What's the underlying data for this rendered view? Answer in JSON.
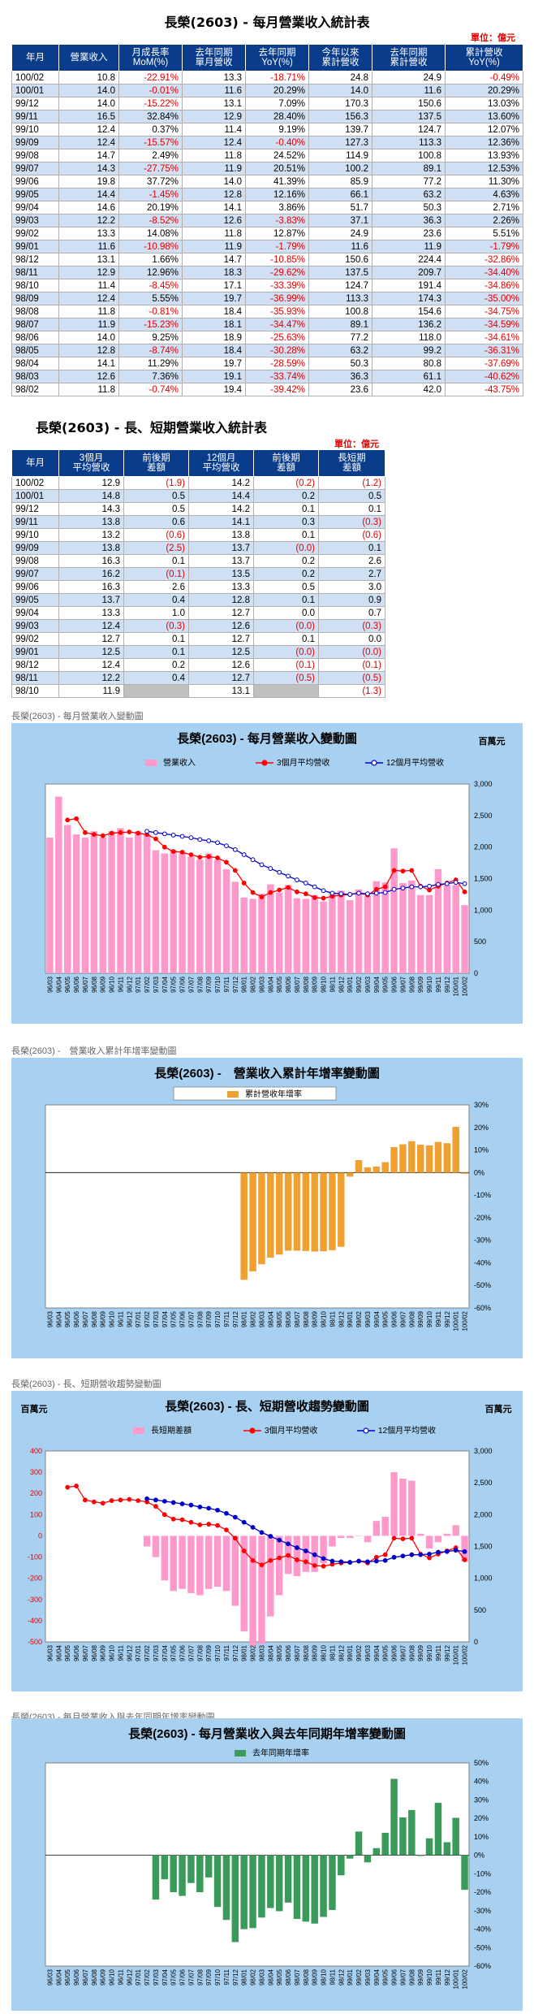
{
  "t1": {
    "title": "長榮(2603) - 每月營業收入統計表",
    "unit": "單位：億元",
    "headers": [
      "年月",
      "營業收入",
      "月成長率\nMoM(%)",
      "去年同期\n單月營收",
      "去年同期\nYoY(%)",
      "今年以來\n累計營收",
      "去年同期\n累計營收",
      "累計營收\nYoY(%)"
    ],
    "rows": [
      [
        "100/02",
        "10.8",
        "-22.91%",
        "13.3",
        "-18.71%",
        "24.8",
        "24.9",
        "-0.49%"
      ],
      [
        "100/01",
        "14.0",
        "-0.01%",
        "11.6",
        "20.29%",
        "14.0",
        "11.6",
        "20.29%"
      ],
      [
        "99/12",
        "14.0",
        "-15.22%",
        "13.1",
        "7.09%",
        "170.3",
        "150.6",
        "13.03%"
      ],
      [
        "99/11",
        "16.5",
        "32.84%",
        "12.9",
        "28.40%",
        "156.3",
        "137.5",
        "13.60%"
      ],
      [
        "99/10",
        "12.4",
        "0.37%",
        "11.4",
        "9.19%",
        "139.7",
        "124.7",
        "12.07%"
      ],
      [
        "99/09",
        "12.4",
        "-15.57%",
        "12.4",
        "-0.40%",
        "127.3",
        "113.3",
        "12.36%"
      ],
      [
        "99/08",
        "14.7",
        "2.49%",
        "11.8",
        "24.52%",
        "114.9",
        "100.8",
        "13.93%"
      ],
      [
        "99/07",
        "14.3",
        "-27.75%",
        "11.9",
        "20.51%",
        "100.2",
        "89.1",
        "12.53%"
      ],
      [
        "99/06",
        "19.8",
        "37.72%",
        "14.0",
        "41.39%",
        "85.9",
        "77.2",
        "11.30%"
      ],
      [
        "99/05",
        "14.4",
        "-1.45%",
        "12.8",
        "12.16%",
        "66.1",
        "63.2",
        "4.63%"
      ],
      [
        "99/04",
        "14.6",
        "20.19%",
        "14.1",
        "3.86%",
        "51.7",
        "50.3",
        "2.71%"
      ],
      [
        "99/03",
        "12.2",
        "-8.52%",
        "12.6",
        "-3.83%",
        "37.1",
        "36.3",
        "2.26%"
      ],
      [
        "99/02",
        "13.3",
        "14.08%",
        "11.8",
        "12.87%",
        "24.9",
        "23.6",
        "5.51%"
      ],
      [
        "99/01",
        "11.6",
        "-10.98%",
        "11.9",
        "-1.79%",
        "11.6",
        "11.9",
        "-1.79%"
      ],
      [
        "98/12",
        "13.1",
        "1.66%",
        "14.7",
        "-10.85%",
        "150.6",
        "224.4",
        "-32.86%"
      ],
      [
        "98/11",
        "12.9",
        "12.96%",
        "18.3",
        "-29.62%",
        "137.5",
        "209.7",
        "-34.40%"
      ],
      [
        "98/10",
        "11.4",
        "-8.45%",
        "17.1",
        "-33.39%",
        "124.7",
        "191.4",
        "-34.86%"
      ],
      [
        "98/09",
        "12.4",
        "5.55%",
        "19.7",
        "-36.99%",
        "113.3",
        "174.3",
        "-35.00%"
      ],
      [
        "98/08",
        "11.8",
        "-0.81%",
        "18.4",
        "-35.93%",
        "100.8",
        "154.6",
        "-34.75%"
      ],
      [
        "98/07",
        "11.9",
        "-15.23%",
        "18.1",
        "-34.47%",
        "89.1",
        "136.2",
        "-34.59%"
      ],
      [
        "98/06",
        "14.0",
        "9.25%",
        "18.9",
        "-25.63%",
        "77.2",
        "118.0",
        "-34.61%"
      ],
      [
        "98/05",
        "12.8",
        "-8.74%",
        "18.4",
        "-30.28%",
        "63.2",
        "99.2",
        "-36.31%"
      ],
      [
        "98/04",
        "14.1",
        "11.29%",
        "19.7",
        "-28.59%",
        "50.3",
        "80.8",
        "-37.69%"
      ],
      [
        "98/03",
        "12.6",
        "7.36%",
        "19.1",
        "-33.74%",
        "36.3",
        "61.1",
        "-40.62%"
      ],
      [
        "98/02",
        "11.8",
        "-0.74%",
        "19.4",
        "-39.42%",
        "23.6",
        "42.0",
        "-43.75%"
      ]
    ]
  },
  "t2": {
    "title": "長榮(2603) - 長、短期營業收入統計表",
    "unit": "單位：億元",
    "headers": [
      "年月",
      "3個月\n平均營收",
      "前後期\n差額",
      "12個月\n平均營收",
      "前後期\n差額",
      "長短期\n差額"
    ],
    "rows": [
      [
        "100/02",
        "12.9",
        "(1.9)",
        "14.2",
        "(0.2)",
        "(1.2)"
      ],
      [
        "100/01",
        "14.8",
        "0.5",
        "14.4",
        "0.2",
        "0.5"
      ],
      [
        "99/12",
        "14.3",
        "0.5",
        "14.2",
        "0.1",
        "0.1"
      ],
      [
        "99/11",
        "13.8",
        "0.6",
        "14.1",
        "0.3",
        "(0.3)"
      ],
      [
        "99/10",
        "13.2",
        "(0.6)",
        "13.8",
        "0.1",
        "(0.6)"
      ],
      [
        "99/09",
        "13.8",
        "(2.5)",
        "13.7",
        "(0.0)",
        "0.1"
      ],
      [
        "99/08",
        "16.3",
        "0.1",
        "13.7",
        "0.2",
        "2.6"
      ],
      [
        "99/07",
        "16.2",
        "(0.1)",
        "13.5",
        "0.2",
        "2.7"
      ],
      [
        "99/06",
        "16.3",
        "2.6",
        "13.3",
        "0.5",
        "3.0"
      ],
      [
        "99/05",
        "13.7",
        "0.4",
        "12.8",
        "0.1",
        "0.9"
      ],
      [
        "99/04",
        "13.3",
        "1.0",
        "12.7",
        "0.0",
        "0.7"
      ],
      [
        "99/03",
        "12.4",
        "(0.3)",
        "12.6",
        "(0.0)",
        "(0.3)"
      ],
      [
        "99/02",
        "12.7",
        "0.1",
        "12.7",
        "0.1",
        "0.0"
      ],
      [
        "99/01",
        "12.5",
        "0.1",
        "12.5",
        "(0.0)",
        "(0.0)"
      ],
      [
        "98/12",
        "12.4",
        "0.2",
        "12.6",
        "(0.1)",
        "(0.1)"
      ],
      [
        "98/11",
        "12.2",
        "0.4",
        "12.7",
        "(0.5)",
        "(0.5)"
      ],
      [
        "98/10",
        "11.9",
        "",
        "13.1",
        "",
        "(1.3)"
      ]
    ]
  },
  "captions": {
    "c1": "長榮(2603) - 每月營業收入變動圖",
    "c2": "長榮(2603) -　營業收入累計年增率變動圖",
    "c3": "長榮(2603) - 長、短期營收趨勢變動圖",
    "c4": "長榮(2603) - 每月營業收入與去年同期年增率變動圖"
  },
  "xlabels": [
    "96/03",
    "96/04",
    "96/05",
    "96/06",
    "96/07",
    "96/08",
    "96/09",
    "96/10",
    "96/11",
    "96/12",
    "97/01",
    "97/02",
    "97/03",
    "97/04",
    "97/05",
    "97/06",
    "97/07",
    "97/08",
    "97/09",
    "97/10",
    "97/11",
    "97/12",
    "98/01",
    "98/02",
    "98/03",
    "98/04",
    "98/05",
    "98/06",
    "98/07",
    "98/08",
    "98/09",
    "98/10",
    "98/11",
    "98/12",
    "99/01",
    "99/02",
    "99/03",
    "99/04",
    "99/05",
    "99/06",
    "99/07",
    "99/08",
    "99/09",
    "99/10",
    "99/11",
    "99/12",
    "100/01",
    "100/02"
  ],
  "colors": {
    "chart_bg": "#a8d0f0",
    "pink": "#ff99cc",
    "red": "#ff0000",
    "blue": "#0000cc",
    "orange": "#f0a030",
    "green": "#3a9a5a",
    "table_header": "#0a3c8c",
    "table_alt": "#cfe0f5",
    "neg": "#e00000"
  },
  "chart_data": [
    {
      "type": "bar",
      "title": "長榮(2603) - 每月營業收入變動圖",
      "unit_label": "百萬元",
      "ylim": [
        0,
        3000
      ],
      "yticks": [
        "0",
        "500",
        "1,000",
        "1,500",
        "2,000",
        "2,500",
        "3,000"
      ],
      "series": [
        {
          "name": "營業收入",
          "kind": "bar",
          "values": [
            2150,
            2800,
            2350,
            2200,
            2150,
            2250,
            2150,
            2250,
            2300,
            2150,
            2250,
            2200,
            1950,
            1900,
            1950,
            1900,
            1850,
            1800,
            1900,
            1800,
            1650,
            1450,
            1200,
            1180,
            1260,
            1410,
            1280,
            1400,
            1190,
            1180,
            1240,
            1140,
            1290,
            1310,
            1160,
            1330,
            1220,
            1460,
            1440,
            1980,
            1430,
            1470,
            1240,
            1240,
            1650,
            1400,
            1400,
            1080
          ]
        },
        {
          "name": "3個月平均營收",
          "kind": "line",
          "values": [
            null,
            null,
            2430,
            2450,
            2230,
            2200,
            2180,
            2220,
            2230,
            2240,
            2220,
            2200,
            2130,
            2000,
            1930,
            1920,
            1880,
            1840,
            1850,
            1830,
            1760,
            1630,
            1430,
            1280,
            1210,
            1280,
            1320,
            1360,
            1290,
            1260,
            1200,
            1190,
            1220,
            1240,
            1250,
            1270,
            1240,
            1330,
            1370,
            1630,
            1620,
            1630,
            1380,
            1320,
            1380,
            1430,
            1480,
            1290
          ]
        },
        {
          "name": "12個月平均營收",
          "kind": "line",
          "values": [
            null,
            null,
            null,
            null,
            null,
            null,
            null,
            null,
            null,
            null,
            null,
            2250,
            2230,
            2210,
            2190,
            2170,
            2150,
            2120,
            2100,
            2070,
            2020,
            1960,
            1880,
            1800,
            1720,
            1660,
            1600,
            1540,
            1480,
            1430,
            1370,
            1310,
            1270,
            1260,
            1250,
            1270,
            1260,
            1270,
            1280,
            1330,
            1350,
            1370,
            1370,
            1380,
            1410,
            1420,
            1440,
            1420
          ]
        }
      ]
    },
    {
      "type": "bar",
      "title": "長榮(2603) -　營業收入累計年增率變動圖",
      "ylim": [
        -60,
        30
      ],
      "yticks": [
        "30%",
        "20%",
        "10%",
        "0%",
        "-10%",
        "-20%",
        "-30%",
        "-40%",
        "-50%",
        "-60%"
      ],
      "series": [
        {
          "name": "累計營收年增率",
          "values": [
            null,
            null,
            null,
            null,
            null,
            null,
            null,
            null,
            null,
            null,
            null,
            null,
            null,
            null,
            null,
            null,
            null,
            null,
            null,
            null,
            null,
            null,
            -47.5,
            -43.75,
            -40.62,
            -37.69,
            -36.31,
            -34.61,
            -34.59,
            -34.75,
            -35.0,
            -34.86,
            -34.4,
            -32.86,
            -1.79,
            5.51,
            2.26,
            2.71,
            4.63,
            11.3,
            12.53,
            13.93,
            12.36,
            12.07,
            13.6,
            13.03,
            20.29,
            -0.49
          ]
        }
      ]
    },
    {
      "type": "bar",
      "title": "長榮(2603) - 長、短期營收趨勢變動圖",
      "unit_label": "百萬元",
      "ylim_left": [
        -500,
        400
      ],
      "yticks_left": [
        "400",
        "300",
        "200",
        "100",
        "0",
        "-100",
        "-200",
        "-300",
        "-400",
        "-500"
      ],
      "ylim_right": [
        0,
        3000
      ],
      "yticks_right": [
        "3,000",
        "2,500",
        "2,000",
        "1,500",
        "1,000",
        "500",
        "0"
      ],
      "series": [
        {
          "name": "長短期差額",
          "kind": "bar",
          "axis": "left",
          "values": [
            null,
            null,
            null,
            null,
            null,
            null,
            null,
            null,
            null,
            null,
            null,
            -50,
            -100,
            -210,
            -260,
            -250,
            -270,
            -280,
            -250,
            -240,
            -260,
            -330,
            -450,
            -520,
            -510,
            -380,
            -280,
            -180,
            -190,
            -170,
            -170,
            -130,
            -50,
            -10,
            -10,
            0,
            -30,
            70,
            90,
            300,
            270,
            260,
            10,
            -60,
            -30,
            10,
            50,
            -120
          ]
        },
        {
          "name": "3個月平均營收",
          "kind": "line",
          "axis": "right",
          "values": [
            null,
            null,
            2430,
            2450,
            2230,
            2200,
            2180,
            2220,
            2230,
            2240,
            2220,
            2200,
            2130,
            2000,
            1930,
            1920,
            1880,
            1840,
            1850,
            1830,
            1760,
            1630,
            1430,
            1280,
            1210,
            1280,
            1320,
            1360,
            1290,
            1260,
            1200,
            1190,
            1220,
            1240,
            1250,
            1270,
            1240,
            1330,
            1370,
            1630,
            1620,
            1630,
            1380,
            1320,
            1380,
            1430,
            1480,
            1290
          ]
        },
        {
          "name": "12個月平均營收",
          "kind": "line",
          "axis": "right",
          "values": [
            null,
            null,
            null,
            null,
            null,
            null,
            null,
            null,
            null,
            null,
            null,
            2250,
            2230,
            2210,
            2190,
            2170,
            2150,
            2120,
            2100,
            2070,
            2020,
            1960,
            1880,
            1800,
            1720,
            1660,
            1600,
            1540,
            1480,
            1430,
            1370,
            1310,
            1270,
            1260,
            1250,
            1270,
            1260,
            1270,
            1280,
            1330,
            1350,
            1370,
            1370,
            1380,
            1410,
            1420,
            1440,
            1420
          ]
        }
      ]
    },
    {
      "type": "bar",
      "title": "長榮(2603) - 每月營業收入與去年同期年增率變動圖",
      "ylim": [
        -60,
        50
      ],
      "yticks": [
        "50%",
        "40%",
        "30%",
        "20%",
        "10%",
        "0%",
        "-10%",
        "-20%",
        "-30%",
        "-40%",
        "-50%",
        "-60%"
      ],
      "series": [
        {
          "name": "去年同期年增率",
          "values": [
            null,
            null,
            null,
            null,
            null,
            null,
            null,
            null,
            null,
            null,
            null,
            null,
            -24,
            -13,
            -20,
            -22,
            -15,
            -20,
            -12,
            -28,
            -35,
            -47,
            -40,
            -39.42,
            -33.74,
            -28.59,
            -30.28,
            -25.63,
            -34.47,
            -35.93,
            -36.99,
            -33.39,
            -29.62,
            -10.85,
            -1.79,
            12.87,
            -3.83,
            3.86,
            12.16,
            41.39,
            20.51,
            24.52,
            -0.4,
            9.19,
            28.4,
            7.09,
            20.29,
            -18.71
          ]
        }
      ]
    }
  ]
}
